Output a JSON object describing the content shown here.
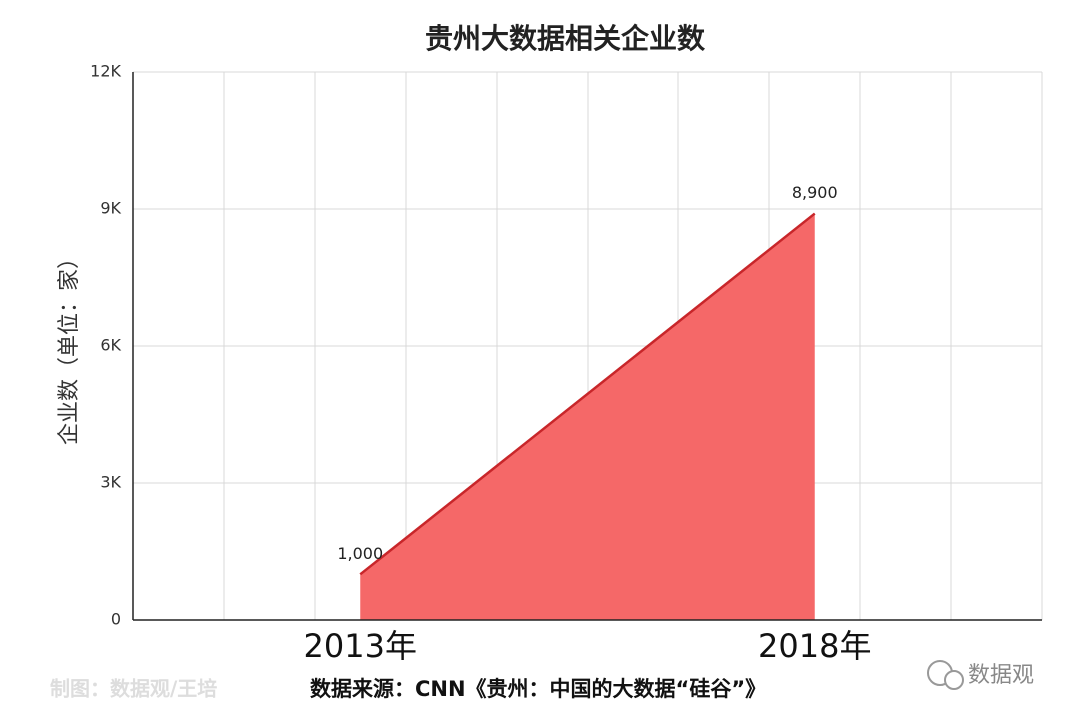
{
  "chart_data": {
    "type": "area",
    "title": "贵州大数据相关企业数",
    "y_label": "企业数（单位：家）",
    "categories": [
      "2013年",
      "2018年"
    ],
    "values": [
      1000,
      8900
    ],
    "value_labels": [
      "1,000",
      "8,900"
    ],
    "color": "#f56868",
    "line_color": "#c8262a",
    "ylim": [
      0,
      12000
    ],
    "yticks": [
      0,
      {
        "value": 3000,
        "label": "3K"
      },
      {
        "value": 6000,
        "label": "6K"
      },
      {
        "value": 9000,
        "label": "9K"
      },
      {
        "value": 12000,
        "label": "12K"
      }
    ],
    "grid": true
  },
  "footer": {
    "credit": "制图：数据观/王培",
    "source": "数据来源：CNN《贵州：中国的大数据“硅谷”》",
    "watermark": "数据观"
  }
}
